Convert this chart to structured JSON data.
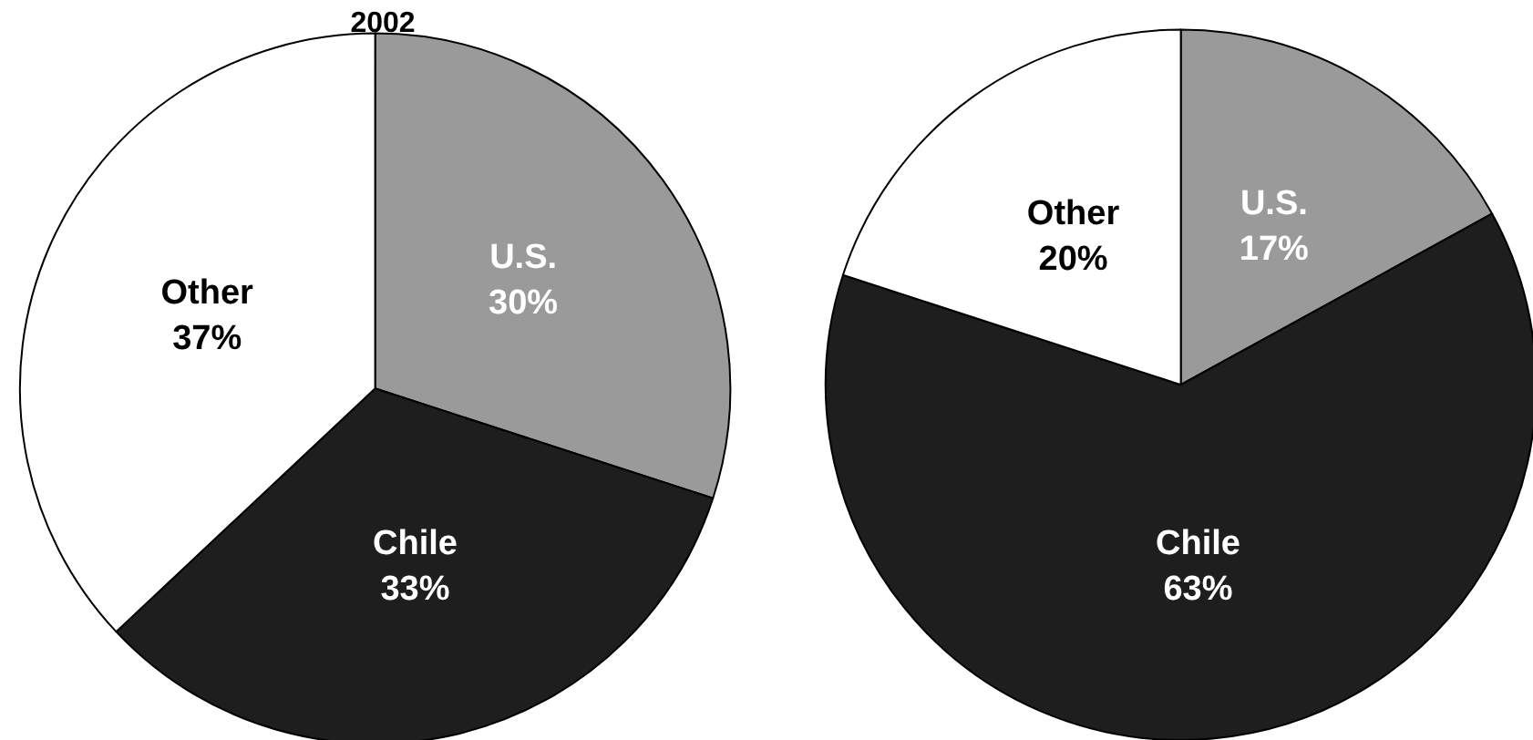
{
  "chart_data": [
    {
      "type": "pie",
      "title": "2002",
      "categories": [
        "U.S.",
        "Chile",
        "Other"
      ],
      "values": [
        30,
        33,
        37
      ],
      "colors": [
        "#9a9a9a",
        "#1e1e1e",
        "#ffffff"
      ],
      "value_labels": [
        "30%",
        "33%",
        "37%"
      ]
    },
    {
      "type": "pie",
      "categories": [
        "U.S.",
        "Chile",
        "Other"
      ],
      "values": [
        17,
        63,
        20
      ],
      "colors": [
        "#9a9a9a",
        "#1e1e1e",
        "#ffffff"
      ],
      "value_labels": [
        "17%",
        "63%",
        "20%"
      ]
    }
  ]
}
